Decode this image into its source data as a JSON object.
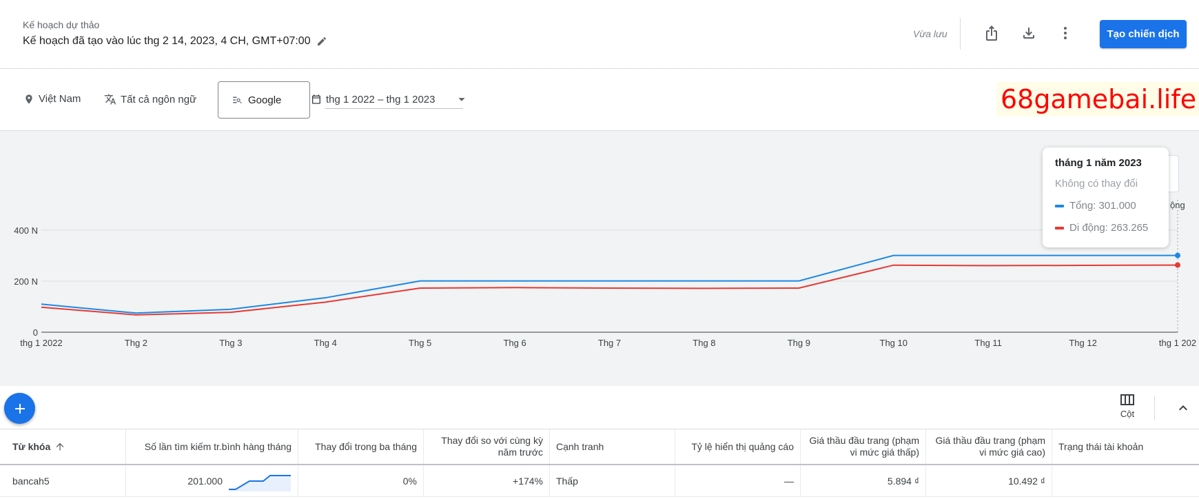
{
  "header": {
    "draft_label": "Kế hoạch dự thảo",
    "plan_title": "Kế hoạch đã tạo vào lúc thg 2 14, 2023, 4 CH, GMT+07:00",
    "saved_status": "Vừa lưu",
    "create_button": "Tạo chiến dịch"
  },
  "filters": {
    "location": "Việt Nam",
    "language": "Tất cả ngôn ngữ",
    "network": "Google",
    "date_range": "thg 1 2022 – thg 1 2023"
  },
  "watermark": "68gamebai.life",
  "chart_data": {
    "type": "line",
    "x": [
      "thg 1 2022",
      "Thg 2",
      "Thg 3",
      "Thg 4",
      "Thg 5",
      "Thg 6",
      "Thg 7",
      "Thg 8",
      "Thg 9",
      "Thg 10",
      "Thg 11",
      "Thg 12",
      "thg 1 202"
    ],
    "y_ticks": [
      "0",
      "200 N",
      "400 N"
    ],
    "ylim": [
      0,
      400000
    ],
    "grid": true,
    "series": [
      {
        "name": "Tổng",
        "color": "#1e88e5",
        "values": [
          110000,
          75000,
          90000,
          135000,
          201000,
          201000,
          201000,
          201000,
          201000,
          301000,
          301000,
          301000,
          301000
        ]
      },
      {
        "name": "Di động",
        "color": "#e53935",
        "values": [
          98000,
          68000,
          78000,
          118000,
          173000,
          175000,
          173000,
          172000,
          173000,
          263000,
          261000,
          262000,
          263265
        ]
      }
    ]
  },
  "tooltip": {
    "title": "tháng 1 năm 2023",
    "subtitle": "Không có thay đổi",
    "rows": [
      {
        "label": "Tổng: 301.000",
        "color": "#1e88e5"
      },
      {
        "label": "Di động: 263.265",
        "color": "#e53935"
      }
    ]
  },
  "legend_peek": "ộng",
  "toolbar": {
    "columns_label": "Cột"
  },
  "table": {
    "headers": [
      "Từ khóa",
      "Số lần tìm kiếm tr.bình hàng tháng",
      "Thay đổi trong ba tháng",
      "Thay đổi so với cùng kỳ năm trước",
      "Cạnh tranh",
      "Tỷ lệ hiển thị quảng cáo",
      "Giá thầu đầu trang (phạm vi mức giá thấp)",
      "Giá thầu đầu trang (phạm vi mức giá cao)",
      "Trạng thái tài khoản"
    ],
    "rows": [
      {
        "keyword": "bancah5",
        "avg_searches": "201.000",
        "trend": [
          0,
          0,
          0.3,
          0.6,
          0.6,
          0.6,
          1,
          1,
          1,
          1
        ],
        "three_month_change": "0%",
        "yoy_change": "+174%",
        "competition": "Thấp",
        "ad_impression_share": "—",
        "bid_low": "5.894 ₫",
        "bid_high": "10.492 ₫",
        "account_status": ""
      }
    ]
  }
}
